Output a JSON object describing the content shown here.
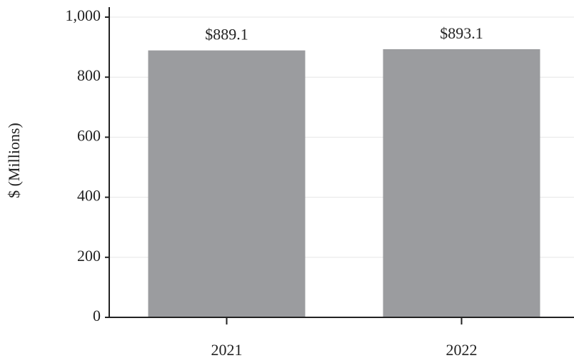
{
  "chart_data": {
    "type": "bar",
    "y_label": "$ (Millions)",
    "categories": [
      "2021",
      "2022"
    ],
    "values": [
      889.1,
      893.1
    ],
    "value_labels": [
      "$889.1",
      "$893.1"
    ],
    "color": "#9b9c9f",
    "ylim": [
      0,
      1000
    ],
    "yticks": [
      0,
      200,
      400,
      600,
      800,
      {
        "value": 1000,
        "label": "1,000"
      }
    ],
    "grid": true
  }
}
